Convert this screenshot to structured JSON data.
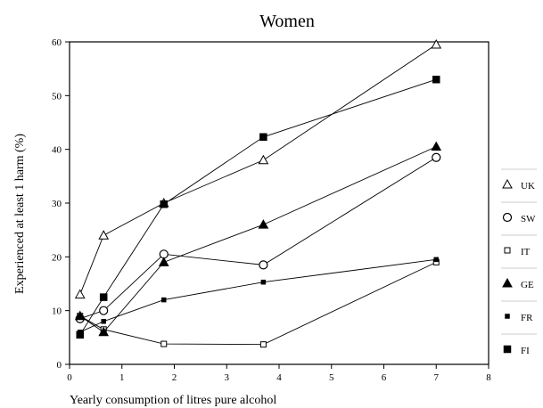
{
  "chart_data": {
    "type": "line",
    "title": "Women",
    "xlabel": "Yearly consumption of litres pure alcohol",
    "ylabel": "Experienced at least 1 harm (%)",
    "xlim": [
      0,
      8
    ],
    "ylim": [
      0,
      60
    ],
    "xticks": [
      "0",
      "1",
      "2",
      "3",
      "4",
      "5",
      "6",
      "7",
      "8"
    ],
    "yticks": [
      "0",
      "10",
      "20",
      "30",
      "40",
      "50",
      "60"
    ],
    "legend_position": "right",
    "grid": false,
    "series": [
      {
        "name": "UK",
        "marker": "triangle-open",
        "x": [
          0.2,
          0.65,
          1.8,
          3.7,
          7.0
        ],
        "y": [
          13,
          24,
          30,
          38,
          59.5
        ]
      },
      {
        "name": "SW",
        "marker": "circle-open",
        "x": [
          0.2,
          0.65,
          1.8,
          3.7,
          7.0
        ],
        "y": [
          8.5,
          10,
          20.5,
          18.5,
          38.5
        ]
      },
      {
        "name": "IT",
        "marker": "square-open-small",
        "x": [
          0.2,
          0.65,
          1.8,
          3.7,
          7.0
        ],
        "y": [
          9,
          6.5,
          3.8,
          3.7,
          19
        ]
      },
      {
        "name": "GE",
        "marker": "triangle-filled",
        "x": [
          0.2,
          0.65,
          1.8,
          3.7,
          7.0
        ],
        "y": [
          9,
          6,
          19,
          26,
          40.5
        ]
      },
      {
        "name": "FR",
        "marker": "square-filled-small",
        "x": [
          0.2,
          0.65,
          1.8,
          3.7,
          7.0
        ],
        "y": [
          6,
          8,
          12,
          15.3,
          19.5
        ]
      },
      {
        "name": "FI",
        "marker": "square-filled",
        "x": [
          0.2,
          0.65,
          1.8,
          3.7,
          7.0
        ],
        "y": [
          5.5,
          12.5,
          29.8,
          42.3,
          53
        ]
      }
    ]
  }
}
